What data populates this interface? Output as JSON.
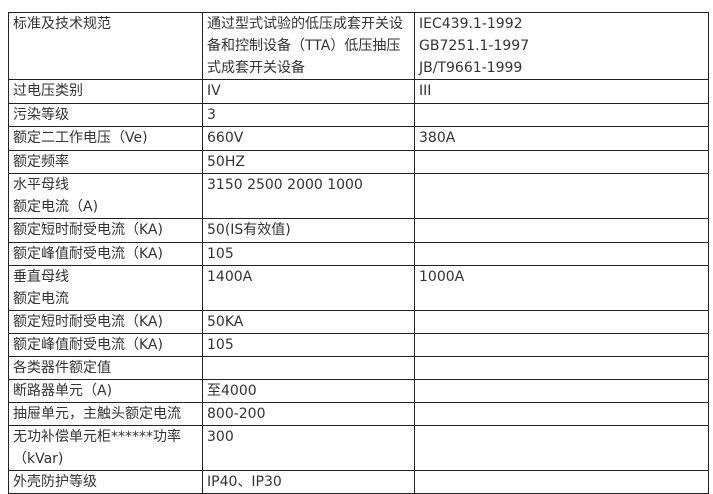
{
  "rows": [
    {
      "label": [
        "标准及技术规范"
      ],
      "value": "通过型式试验的低压成套开关设备和控制设备（TTA）低压抽压式成套开关设备",
      "extra": [
        "IEC439.1-1992",
        "GB7251.1-1997",
        "JB/T9661-1999"
      ]
    },
    {
      "label": [
        "过电压类别"
      ],
      "value": "IV",
      "extra": [
        "III"
      ]
    },
    {
      "label": [
        "污染等级"
      ],
      "value": "3",
      "extra": []
    },
    {
      "label": [
        "额定二工作电压（Ve)"
      ],
      "value": "660V",
      "extra": [
        "380A"
      ]
    },
    {
      "label": [
        "额定频率"
      ],
      "value": "50HZ",
      "extra": []
    },
    {
      "label": [
        "水平母线",
        "额定电流（A)"
      ],
      "value": "3150 2500 2000 1000",
      "extra": []
    },
    {
      "label": [
        "额定短时耐受电流（KA)"
      ],
      "value": "50(IS有效值)",
      "extra": []
    },
    {
      "label": [
        "额定峰值耐受电流（KA)"
      ],
      "value": "105",
      "extra": []
    },
    {
      "label": [
        "垂直母线",
        "额定电流"
      ],
      "value": "1400A",
      "extra": [
        "1000A"
      ]
    },
    {
      "label": [
        "额定短时耐受电流（KA)"
      ],
      "value": "50KA",
      "extra": []
    },
    {
      "label": [
        "额定峰值耐受电流（KA)"
      ],
      "value": "105",
      "extra": []
    },
    {
      "label": [
        "各类器件额定值"
      ],
      "value": "",
      "extra": []
    },
    {
      "label": [
        "断路器单元（A)"
      ],
      "value": "至4000",
      "extra": []
    },
    {
      "label": [
        "抽屉单元，主触头额定电流"
      ],
      "value": "800-200",
      "extra": []
    },
    {
      "label": [
        "无功补偿单元柜******功率（kVar)"
      ],
      "value": "300",
      "extra": []
    },
    {
      "label": [
        "外壳防护等级"
      ],
      "value": "IP40、IP30",
      "extra": []
    }
  ]
}
